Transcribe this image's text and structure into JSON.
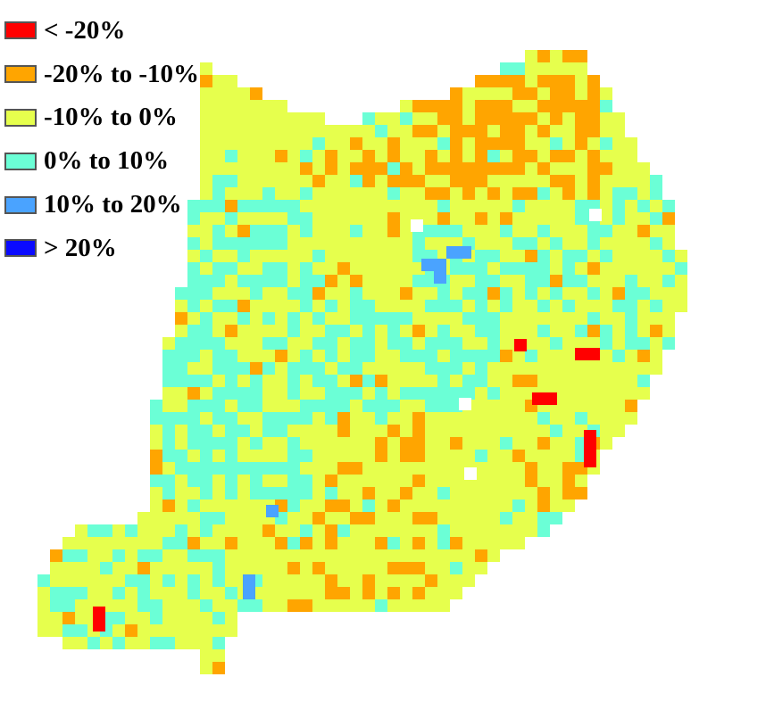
{
  "map": {
    "legend": [
      {
        "label": "< -20%",
        "color": "#ff0000"
      },
      {
        "label": "-20% to -10%",
        "color": "#ffa500"
      },
      {
        "label": "-10% to 0%",
        "color": "#e6ff4d"
      },
      {
        "label": " 0% to 10%",
        "color": "#6bffd6"
      },
      {
        "label": "10% to 20%",
        "color": "#4aa3ff"
      },
      {
        "label": "> 20%",
        "color": "#0a0aff"
      }
    ],
    "land_color": "#ffffff",
    "boundary_color": "#000000"
  }
}
